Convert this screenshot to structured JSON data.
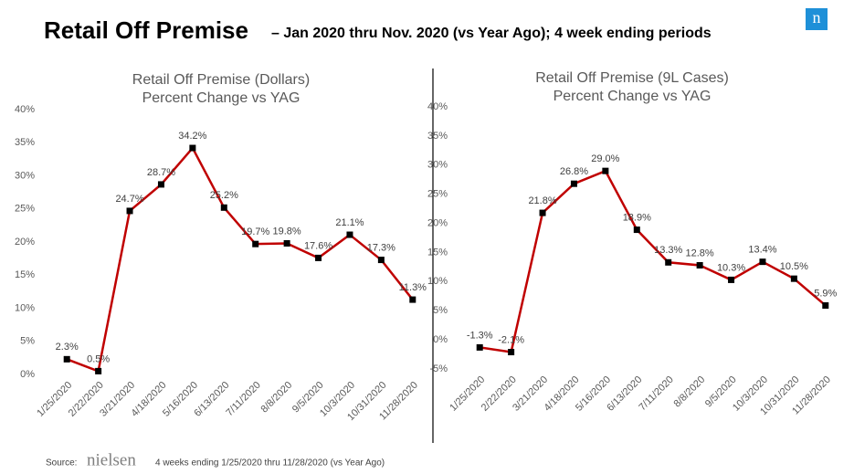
{
  "header": {
    "title": "Retail Off Premise",
    "subtitle": "– Jan 2020 thru Nov. 2020 (vs Year Ago); 4 week ending periods",
    "logo": "n"
  },
  "chart_data": [
    {
      "type": "line",
      "title": "Retail Off Premise (Dollars)",
      "subtitle": "Percent Change vs YAG",
      "categories": [
        "1/25/2020",
        "2/22/2020",
        "3/21/2020",
        "4/18/2020",
        "5/16/2020",
        "6/13/2020",
        "7/11/2020",
        "8/8/2020",
        "9/5/2020",
        "10/3/2020",
        "10/31/2020",
        "11/28/2020"
      ],
      "values": [
        2.3,
        0.5,
        24.7,
        28.7,
        34.2,
        25.2,
        19.7,
        19.8,
        17.6,
        21.1,
        17.3,
        11.3
      ],
      "value_labels": [
        "2.3%",
        "0.5%",
        "24.7%",
        "28.7%",
        "34.2%",
        "25.2%",
        "19.7%",
        "19.8%",
        "17.6%",
        "21.1%",
        "17.3%",
        "11.3%"
      ],
      "color": "#c00000",
      "marker_color": "#000000",
      "grid": false,
      "ylim": [
        0,
        40
      ],
      "yticks": [
        {
          "value": 0,
          "label": "0%"
        },
        {
          "value": 5,
          "label": "5%"
        },
        {
          "value": 10,
          "label": "10%"
        },
        {
          "value": 15,
          "label": "15%"
        },
        {
          "value": 20,
          "label": "20%"
        },
        {
          "value": 25,
          "label": "25%"
        },
        {
          "value": 30,
          "label": "30%"
        },
        {
          "value": 35,
          "label": "35%"
        },
        {
          "value": 40,
          "label": "40%"
        }
      ]
    },
    {
      "type": "line",
      "title": "Retail Off Premise (9L Cases)",
      "subtitle": "Percent Change vs YAG",
      "categories": [
        "1/25/2020",
        "2/22/2020",
        "3/21/2020",
        "4/18/2020",
        "5/16/2020",
        "6/13/2020",
        "7/11/2020",
        "8/8/2020",
        "9/5/2020",
        "10/3/2020",
        "10/31/2020",
        "11/28/2020"
      ],
      "values": [
        -1.3,
        -2.1,
        21.8,
        26.8,
        29.0,
        18.9,
        13.3,
        12.8,
        10.3,
        13.4,
        10.5,
        5.9
      ],
      "value_labels": [
        "-1.3%",
        "-2.1%",
        "21.8%",
        "26.8%",
        "29.0%",
        "18.9%",
        "13.3%",
        "12.8%",
        "10.3%",
        "13.4%",
        "10.5%",
        "5.9%"
      ],
      "color": "#c00000",
      "marker_color": "#000000",
      "grid": false,
      "ylim": [
        -5,
        40
      ],
      "yticks": [
        {
          "value": -5,
          "label": "-5%"
        },
        {
          "value": 0,
          "label": "0%"
        },
        {
          "value": 5,
          "label": "5%"
        },
        {
          "value": 10,
          "label": "10%"
        },
        {
          "value": 15,
          "label": "15%"
        },
        {
          "value": 20,
          "label": "20%"
        },
        {
          "value": 25,
          "label": "25%"
        },
        {
          "value": 30,
          "label": "30%"
        },
        {
          "value": 35,
          "label": "35%"
        },
        {
          "value": 40,
          "label": "40%"
        }
      ]
    }
  ],
  "footer": {
    "source_label": "Source:",
    "brand": "nielsen",
    "note": "4 weeks ending 1/25/2020 thru 11/28/2020 (vs Year Ago)"
  }
}
